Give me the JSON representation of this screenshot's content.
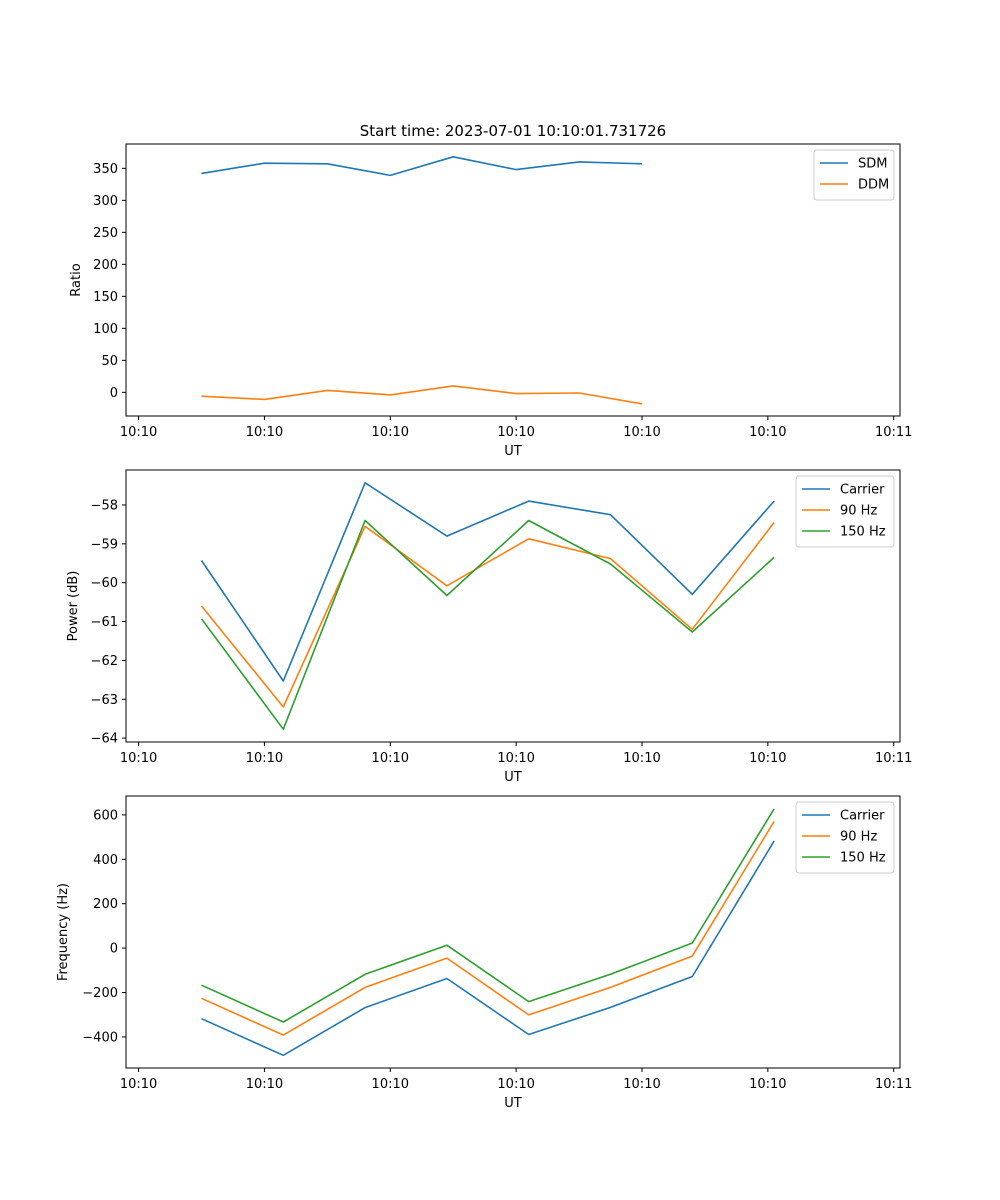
{
  "figure": {
    "title": "Start time: 2023-07-01 10:10:01.731726"
  },
  "chart_data": [
    {
      "type": "line",
      "title": "Start time: 2023-07-01 10:10:01.731726",
      "xlabel": "UT",
      "ylabel": "Ratio",
      "x": [
        0.5,
        1.0,
        1.5,
        2.0,
        2.5,
        3.0,
        3.5,
        4.0
      ],
      "xlim": [
        -0.1,
        6.05
      ],
      "xticks": [
        0,
        1,
        2,
        3,
        4,
        5,
        6
      ],
      "xtick_labels": [
        "10:10",
        "10:10",
        "10:10",
        "10:10",
        "10:10",
        "10:10",
        "10:11"
      ],
      "ylim": [
        -37,
        388
      ],
      "yticks": [
        0,
        50,
        100,
        150,
        200,
        250,
        300,
        350
      ],
      "ytick_labels": [
        "0",
        "50",
        "100",
        "150",
        "200",
        "250",
        "300",
        "350"
      ],
      "legend_position": "top-right",
      "grid": false,
      "series": [
        {
          "name": "SDM",
          "color": "#1f77b4",
          "values": [
            342,
            358,
            357,
            339,
            368,
            348,
            360,
            357
          ]
        },
        {
          "name": "DDM",
          "color": "#ff7f0e",
          "values": [
            -6,
            -11,
            3,
            -4,
            10,
            -2,
            -1,
            -18
          ]
        }
      ]
    },
    {
      "type": "line",
      "xlabel": "UT",
      "ylabel": "Power (dB)",
      "x": [
        0.5,
        1.15,
        1.8,
        2.45,
        3.1,
        3.75,
        4.4,
        5.05
      ],
      "xlim": [
        -0.1,
        6.05
      ],
      "xticks": [
        0,
        1,
        2,
        3,
        4,
        5,
        6
      ],
      "xtick_labels": [
        "10:10",
        "10:10",
        "10:10",
        "10:10",
        "10:10",
        "10:10",
        "10:11"
      ],
      "ylim": [
        -64.1,
        -57.1
      ],
      "yticks": [
        -64,
        -63,
        -62,
        -61,
        -60,
        -59,
        -58
      ],
      "ytick_labels": [
        "−64",
        "−63",
        "−62",
        "−61",
        "−60",
        "−59",
        "−58"
      ],
      "legend_position": "top-right",
      "grid": false,
      "series": [
        {
          "name": "Carrier",
          "color": "#1f77b4",
          "values": [
            -59.43,
            -62.53,
            -57.43,
            -58.8,
            -57.9,
            -58.25,
            -60.3,
            -57.9
          ]
        },
        {
          "name": "90 Hz",
          "color": "#ff7f0e",
          "values": [
            -60.6,
            -63.2,
            -58.55,
            -60.08,
            -58.87,
            -59.38,
            -61.2,
            -58.45
          ]
        },
        {
          "name": "150 Hz",
          "color": "#2ca02c",
          "values": [
            -60.93,
            -63.77,
            -58.4,
            -60.33,
            -58.4,
            -59.52,
            -61.27,
            -59.35
          ]
        }
      ]
    },
    {
      "type": "line",
      "xlabel": "UT",
      "ylabel": "Frequency (Hz)",
      "x": [
        0.5,
        1.15,
        1.8,
        2.45,
        3.1,
        3.75,
        4.4,
        5.05
      ],
      "xlim": [
        -0.1,
        6.05
      ],
      "xticks": [
        0,
        1,
        2,
        3,
        4,
        5,
        6
      ],
      "xtick_labels": [
        "10:10",
        "10:10",
        "10:10",
        "10:10",
        "10:10",
        "10:10",
        "10:11"
      ],
      "ylim": [
        -540,
        685
      ],
      "yticks": [
        -400,
        -200,
        0,
        200,
        400,
        600
      ],
      "ytick_labels": [
        "−400",
        "−200",
        "0",
        "200",
        "400",
        "600"
      ],
      "legend_position": "top-right",
      "grid": false,
      "series": [
        {
          "name": "Carrier",
          "color": "#1f77b4",
          "values": [
            -318,
            -483,
            -268,
            -137,
            -389,
            -267,
            -128,
            482
          ]
        },
        {
          "name": "90 Hz",
          "color": "#ff7f0e",
          "values": [
            -226,
            -392,
            -177,
            -45,
            -301,
            -177,
            -36,
            570
          ]
        },
        {
          "name": "150 Hz",
          "color": "#2ca02c",
          "values": [
            -167,
            -333,
            -118,
            13,
            -241,
            -118,
            23,
            627
          ]
        }
      ]
    }
  ]
}
